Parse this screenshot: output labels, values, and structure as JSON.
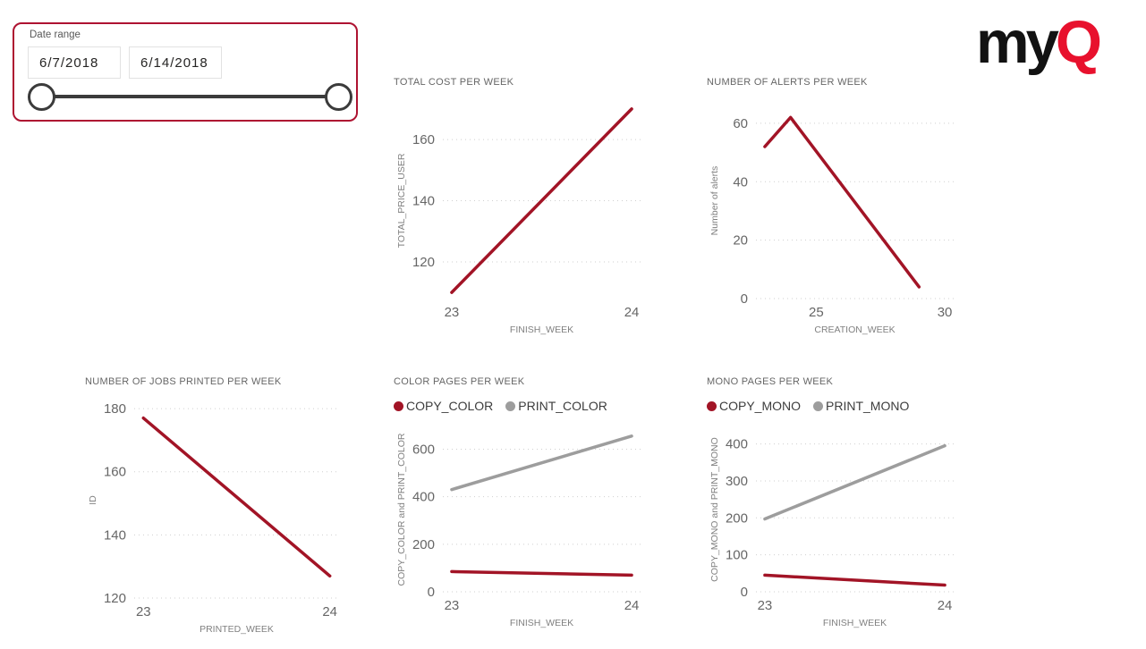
{
  "logo": {
    "part1": "my",
    "part2": "Q"
  },
  "slicer": {
    "label": "Date range",
    "start_value": "6/7/2018",
    "end_value": "6/14/2018"
  },
  "colors": {
    "series_red": "#a21426",
    "series_gray": "#9d9d9d",
    "logo_red": "#e8112d",
    "slicer_border": "#ae1331",
    "gridline": "#cfcfcf"
  },
  "chart_data": [
    {
      "type": "line",
      "title": "TOTAL COST PER WEEK",
      "xlabel": "FINISH_WEEK",
      "ylabel": "TOTAL_PRICE_USER",
      "x": [
        23,
        24
      ],
      "xticks": [
        23,
        24
      ],
      "xlim": [
        23,
        24
      ],
      "yticks": [
        120,
        140,
        160
      ],
      "ylim": [
        108,
        172
      ],
      "grid": true,
      "legend": false,
      "series": [
        {
          "name": "TOTAL_PRICE_USER",
          "color": "#a21426",
          "values": [
            110,
            170
          ]
        }
      ]
    },
    {
      "type": "line",
      "title": "NUMBER OF ALERTS PER WEEK",
      "xlabel": "CREATION_WEEK",
      "ylabel": "Number of alerts",
      "x": [
        23,
        24,
        29
      ],
      "xticks": [
        25,
        30
      ],
      "xlim": [
        23,
        30
      ],
      "yticks": [
        0,
        20,
        40,
        60
      ],
      "ylim": [
        0,
        67
      ],
      "grid": true,
      "legend": false,
      "series": [
        {
          "name": "Number of alerts",
          "color": "#a21426",
          "values": [
            52,
            62,
            4
          ]
        }
      ]
    },
    {
      "type": "line",
      "title": "NUMBER OF JOBS PRINTED PER WEEK",
      "xlabel": "PRINTED_WEEK",
      "ylabel": "ID",
      "x": [
        23,
        24
      ],
      "xticks": [
        23,
        24
      ],
      "xlim": [
        23,
        24
      ],
      "yticks": [
        120,
        140,
        160,
        180
      ],
      "ylim": [
        120,
        182
      ],
      "grid": true,
      "legend": false,
      "series": [
        {
          "name": "ID",
          "color": "#a21426",
          "values": [
            177,
            127
          ]
        }
      ]
    },
    {
      "type": "line",
      "title": "COLOR PAGES PER WEEK",
      "xlabel": "FINISH_WEEK",
      "ylabel": "COPY_COLOR and PRINT_COLOR",
      "x": [
        23,
        24
      ],
      "xticks": [
        23,
        24
      ],
      "xlim": [
        23,
        24
      ],
      "yticks": [
        0,
        200,
        400,
        600
      ],
      "ylim": [
        0,
        692
      ],
      "grid": true,
      "legend": true,
      "series": [
        {
          "name": "COPY_COLOR",
          "color": "#a21426",
          "values": [
            85,
            70
          ]
        },
        {
          "name": "PRINT_COLOR",
          "color": "#9d9d9d",
          "values": [
            430,
            655
          ]
        }
      ]
    },
    {
      "type": "line",
      "title": "MONO PAGES PER WEEK",
      "xlabel": "FINISH_WEEK",
      "ylabel": "COPY_MONO and PRINT_MONO",
      "x": [
        23,
        24
      ],
      "xticks": [
        23,
        24
      ],
      "xlim": [
        23,
        24
      ],
      "yticks": [
        0,
        100,
        200,
        300,
        400
      ],
      "ylim": [
        0,
        445
      ],
      "grid": true,
      "legend": true,
      "series": [
        {
          "name": "COPY_MONO",
          "color": "#a21426",
          "values": [
            45,
            18
          ]
        },
        {
          "name": "PRINT_MONO",
          "color": "#9d9d9d",
          "values": [
            197,
            395
          ]
        }
      ]
    }
  ]
}
